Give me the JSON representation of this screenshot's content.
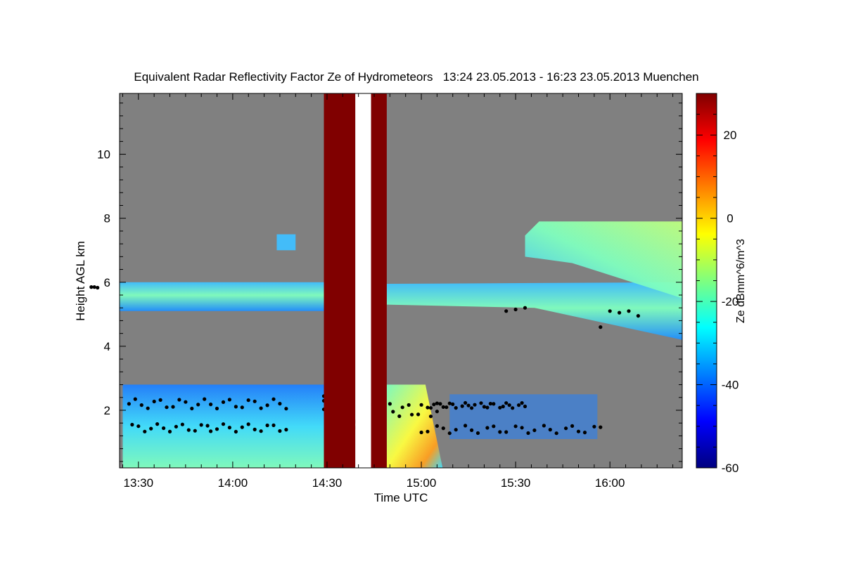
{
  "chart_data": {
    "type": "heatmap",
    "title": "Equivalent Radar Reflectivity Factor Ze of Hydrometeors   13:24 23.05.2013 - 16:23 23.05.2013 Muenchen",
    "xlabel": "Time UTC",
    "ylabel": "Height AGL km",
    "xlim": [
      "13:24",
      "16:23"
    ],
    "ylim": [
      0.2,
      11.9
    ],
    "x_ticks": [
      "13:30",
      "14:00",
      "14:30",
      "15:00",
      "15:30",
      "16:00"
    ],
    "y_ticks": [
      2,
      4,
      6,
      8,
      10
    ],
    "colorbar": {
      "label": "Ze dBmm^6/m^3",
      "range": [
        -60,
        30
      ],
      "ticks": [
        -60,
        -40,
        -20,
        0,
        20
      ],
      "colors": [
        "#00007f",
        "#0000ff",
        "#007fff",
        "#00ffff",
        "#7fff7f",
        "#ffff00",
        "#ff7f00",
        "#ff0000",
        "#7f0000"
      ]
    },
    "background_color": "#808080",
    "gap_color": "#800000",
    "gaps": [
      {
        "start": "14:29",
        "end": "14:39"
      },
      {
        "start": "14:44",
        "end": "14:49"
      }
    ],
    "blank_interval": {
      "start": "14:39",
      "end": "14:44"
    },
    "layers": [
      {
        "name": "",
        "start": "13:24",
        "end": "14:29",
        "base_km": 5.1,
        "top_km": 6.0,
        "ze_dbz": -28
      },
      {
        "name": "",
        "start": "14:49",
        "end": "16:23",
        "base_km": 4.2,
        "top_km": 6.0,
        "ze_dbz": -25
      },
      {
        "name": "",
        "start": "15:33",
        "end": "16:23",
        "base_km": 5.5,
        "top_km": 7.9,
        "ze_dbz": -22
      },
      {
        "name": "",
        "start": "14:14",
        "end": "14:20",
        "base_km": 7.0,
        "top_km": 7.5,
        "ze_dbz": -30
      },
      {
        "name": "",
        "start": "13:25",
        "end": "14:29",
        "base_km": 0.2,
        "top_km": 2.8,
        "ze_dbz": -30
      },
      {
        "name": "",
        "start": "14:49",
        "end": "15:09",
        "base_km": 0.2,
        "top_km": 2.8,
        "ze_dbz": -10
      },
      {
        "name": "",
        "start": "15:09",
        "end": "15:56",
        "base_km": 1.1,
        "top_km": 2.5,
        "ze_dbz": -38
      }
    ]
  }
}
